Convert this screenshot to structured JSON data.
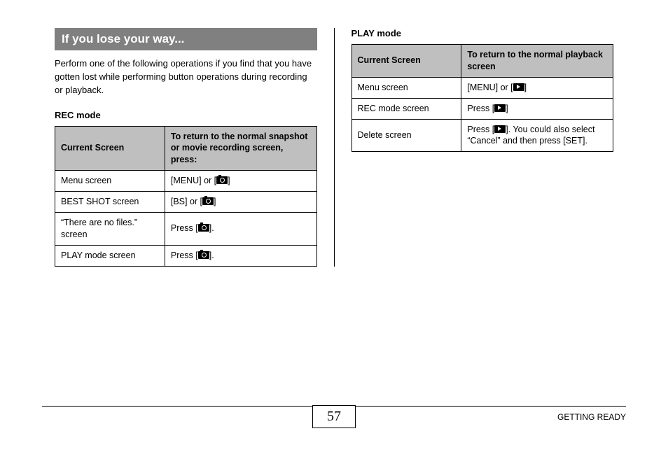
{
  "heading": "If you lose your way...",
  "intro": "Perform one of the following operations if you find that you have gotten lost while performing button operations during recording or playback.",
  "rec": {
    "label": "REC mode",
    "header_screen": "Current Screen",
    "header_action": "To return to the normal snapshot or movie recording screen, press:",
    "rows": [
      {
        "screen": "Menu screen",
        "pre": "[MENU] or [",
        "icon": "camera",
        "post": "]"
      },
      {
        "screen": "BEST SHOT screen",
        "pre": "[BS] or [",
        "icon": "camera",
        "post": "]"
      },
      {
        "screen": "“There are no files.” screen",
        "pre": "Press [",
        "icon": "camera",
        "post": "]."
      },
      {
        "screen": "PLAY mode screen",
        "pre": "Press [",
        "icon": "camera",
        "post": "]."
      }
    ]
  },
  "play": {
    "label": "PLAY mode",
    "header_screen": "Current Screen",
    "header_action": "To return to the normal playback screen",
    "rows": [
      {
        "screen": "Menu screen",
        "pre": "[MENU] or [",
        "icon": "play",
        "post": "]"
      },
      {
        "screen": "REC mode screen",
        "pre": "Press [",
        "icon": "play",
        "post": "]"
      },
      {
        "screen": "Delete screen",
        "pre": "Press [",
        "icon": "play",
        "post": "]. You could also select “Cancel” and then press [SET]."
      }
    ]
  },
  "page_number": "57",
  "footer_label": "GETTING READY"
}
